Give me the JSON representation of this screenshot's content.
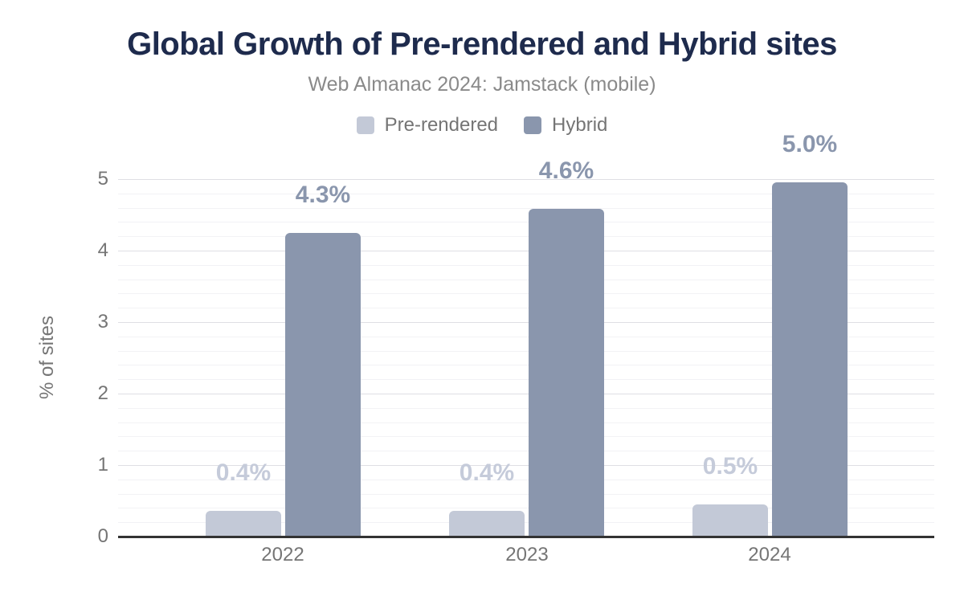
{
  "chart_data": {
    "type": "bar",
    "title": "Global Growth of Pre-rendered and Hybrid sites",
    "subtitle": "Web Almanac 2024: Jamstack (mobile)",
    "categories": [
      "2022",
      "2023",
      "2024"
    ],
    "series": [
      {
        "name": "Pre-rendered",
        "values": [
          0.4,
          0.4,
          0.5
        ],
        "labels": [
          "0.4%",
          "0.4%",
          "0.5%"
        ],
        "drawn_values": [
          0.36,
          0.36,
          0.45
        ],
        "color": "#c3c9d7",
        "label_color": "#c5cbda"
      },
      {
        "name": "Hybrid",
        "values": [
          4.3,
          4.6,
          5.0
        ],
        "labels": [
          "4.3%",
          "4.6%",
          "5.0%"
        ],
        "drawn_values": [
          4.25,
          4.58,
          4.95
        ],
        "color": "#8a96ad",
        "label_color": "#8a96ad"
      }
    ],
    "xlabel": "",
    "ylabel": "% of sites",
    "yticks": [
      0,
      1,
      2,
      3,
      4,
      5
    ],
    "ylim": [
      0,
      5.2
    ],
    "minor_grid_step": 0.2,
    "grid": true,
    "legend_position": "top",
    "colors": {
      "background": "#ffffff",
      "title": "#1e2b4d",
      "subtitle": "#8a8a8a",
      "axis_text": "#757575",
      "axis_line": "#333333",
      "major_grid": "#dfdfe4",
      "minor_grid": "#f2f2f5"
    }
  }
}
